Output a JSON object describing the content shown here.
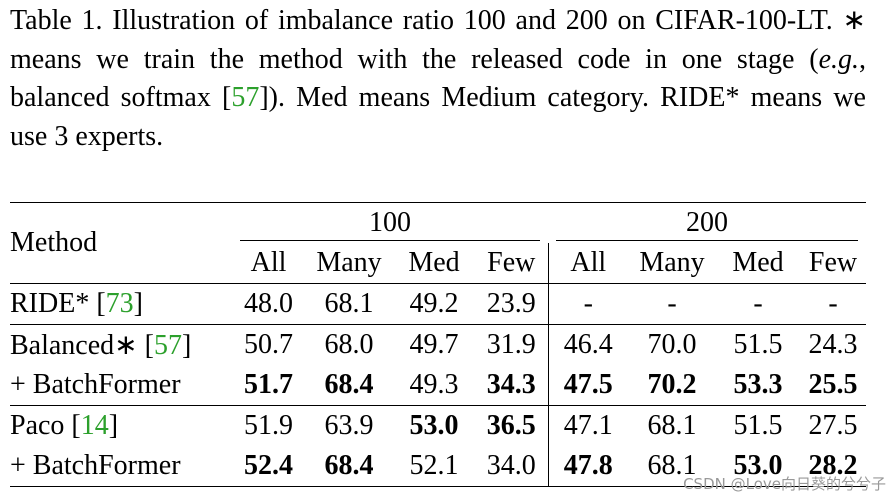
{
  "caption": [
    {
      "text": "Table 1.  Illustration of imbalance ratio 100 and 200 on CIFAR-100-LT. ∗ means we train the method with the released code in one stage ("
    },
    {
      "text": "e.g.",
      "style": "italic"
    },
    {
      "text": ", balanced softmax ["
    },
    {
      "text": "57",
      "style": "link"
    },
    {
      "text": "]). Med means Medium category. RIDE* means we use 3 experts."
    }
  ],
  "table": {
    "method_header": "Method",
    "groups": [
      "100",
      "200"
    ],
    "columns": [
      "All",
      "Many",
      "Med",
      "Few",
      "All",
      "Many",
      "Med",
      "Few"
    ],
    "rows": [
      {
        "method": [
          {
            "text": "RIDE*  ["
          },
          {
            "text": "73",
            "style": "link"
          },
          {
            "text": "]"
          }
        ],
        "values": [
          "48.0",
          "68.1",
          "49.2",
          "23.9",
          "-",
          "-",
          "-",
          "-"
        ],
        "bold": [
          false,
          false,
          false,
          false,
          false,
          false,
          false,
          false
        ]
      },
      {
        "method": [
          {
            "text": "Balanced∗  ["
          },
          {
            "text": "57",
            "style": "link"
          },
          {
            "text": "]"
          }
        ],
        "values": [
          "50.7",
          "68.0",
          "49.7",
          "31.9",
          "46.4",
          "70.0",
          "51.5",
          "24.3"
        ],
        "bold": [
          false,
          false,
          false,
          false,
          false,
          false,
          false,
          false
        ]
      },
      {
        "method": [
          {
            "text": "+ BatchFormer"
          }
        ],
        "values": [
          "51.7",
          "68.4",
          "49.3",
          "34.3",
          "47.5",
          "70.2",
          "53.3",
          "25.5"
        ],
        "bold": [
          true,
          true,
          false,
          true,
          true,
          true,
          true,
          true
        ]
      },
      {
        "method": [
          {
            "text": "Paco ["
          },
          {
            "text": "14",
            "style": "link"
          },
          {
            "text": "]"
          }
        ],
        "values": [
          "51.9",
          "63.9",
          "53.0",
          "36.5",
          "47.1",
          "68.1",
          "51.5",
          "27.5"
        ],
        "bold": [
          false,
          false,
          true,
          true,
          false,
          false,
          false,
          false
        ]
      },
      {
        "method": [
          {
            "text": "+ BatchFormer"
          }
        ],
        "values": [
          "52.4",
          "68.4",
          "52.1",
          "34.0",
          "47.8",
          "68.1",
          "53.0",
          "28.2"
        ],
        "bold": [
          true,
          true,
          false,
          false,
          true,
          false,
          true,
          true
        ]
      }
    ]
  },
  "watermark": "CSDN @Love向日葵的兮兮子"
}
